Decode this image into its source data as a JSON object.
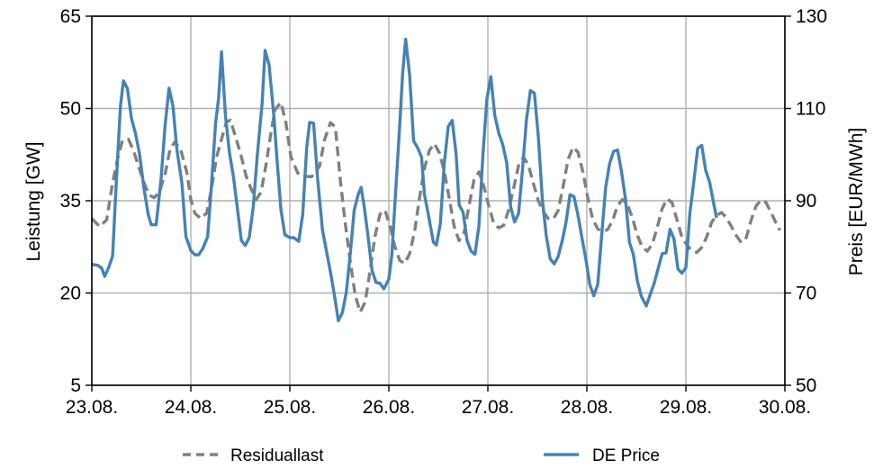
{
  "chart_data": {
    "type": "line",
    "title": "",
    "xlabel": "",
    "ylabel_left": "Leistung [GW]",
    "ylabel_right": "Preis [EUR/MWh]",
    "x_ticks": [
      "23.08.",
      "24.08.",
      "25.08.",
      "26.08.",
      "27.08.",
      "28.08.",
      "29.08.",
      "30.08."
    ],
    "xlim": [
      0,
      7
    ],
    "y_left_ticks": [
      "5",
      "20",
      "35",
      "50",
      "65"
    ],
    "y_left_lim": [
      5,
      65
    ],
    "y_right_ticks": [
      "50",
      "70",
      "90",
      "110",
      "130"
    ],
    "y_right_lim": [
      50,
      130
    ],
    "grid": true,
    "legend_position": "bottom",
    "series": [
      {
        "name": "Residuallast",
        "axis": "left",
        "style": "dashed",
        "color": "#808080",
        "points": [
          [
            0.0,
            32.1
          ],
          [
            0.08,
            30.8
          ],
          [
            0.15,
            31.9
          ],
          [
            0.21,
            37.9
          ],
          [
            0.26,
            41.8
          ],
          [
            0.31,
            44.8
          ],
          [
            0.37,
            45.0
          ],
          [
            0.42,
            43.2
          ],
          [
            0.48,
            40.2
          ],
          [
            0.53,
            37.8
          ],
          [
            0.58,
            35.9
          ],
          [
            0.63,
            35.5
          ],
          [
            0.68,
            36.3
          ],
          [
            0.74,
            39.3
          ],
          [
            0.79,
            43.4
          ],
          [
            0.84,
            44.6
          ],
          [
            0.9,
            43.2
          ],
          [
            0.96,
            39.6
          ],
          [
            1.0,
            35.2
          ],
          [
            1.04,
            33.0
          ],
          [
            1.1,
            32.1
          ],
          [
            1.16,
            33.0
          ],
          [
            1.21,
            37.1
          ],
          [
            1.26,
            42.1
          ],
          [
            1.31,
            45.0
          ],
          [
            1.36,
            47.8
          ],
          [
            1.4,
            48.1
          ],
          [
            1.45,
            45.5
          ],
          [
            1.51,
            42.2
          ],
          [
            1.56,
            38.9
          ],
          [
            1.61,
            36.9
          ],
          [
            1.66,
            35.2
          ],
          [
            1.71,
            36.4
          ],
          [
            1.76,
            40.9
          ],
          [
            1.81,
            46.1
          ],
          [
            1.85,
            49.8
          ],
          [
            1.91,
            51.0
          ],
          [
            1.96,
            47.7
          ],
          [
            2.01,
            42.2
          ],
          [
            2.08,
            39.5
          ],
          [
            2.15,
            39.0
          ],
          [
            2.22,
            38.9
          ],
          [
            2.3,
            40.6
          ],
          [
            2.35,
            44.9
          ],
          [
            2.41,
            47.7
          ],
          [
            2.46,
            47.0
          ],
          [
            2.51,
            38.3
          ],
          [
            2.56,
            31.3
          ],
          [
            2.61,
            25.2
          ],
          [
            2.66,
            19.7
          ],
          [
            2.71,
            16.9
          ],
          [
            2.76,
            18.5
          ],
          [
            2.81,
            23.5
          ],
          [
            2.86,
            29.2
          ],
          [
            2.91,
            32.8
          ],
          [
            2.96,
            33.5
          ],
          [
            3.01,
            31.0
          ],
          [
            3.06,
            27.6
          ],
          [
            3.11,
            25.3
          ],
          [
            3.16,
            24.8
          ],
          [
            3.21,
            26.4
          ],
          [
            3.26,
            30.0
          ],
          [
            3.31,
            35.5
          ],
          [
            3.36,
            40.3
          ],
          [
            3.41,
            43.2
          ],
          [
            3.46,
            44.3
          ],
          [
            3.51,
            42.8
          ],
          [
            3.56,
            39.8
          ],
          [
            3.61,
            35.4
          ],
          [
            3.66,
            30.8
          ],
          [
            3.71,
            28.5
          ],
          [
            3.76,
            29.8
          ],
          [
            3.81,
            34.2
          ],
          [
            3.86,
            38.4
          ],
          [
            3.91,
            39.7
          ],
          [
            3.96,
            37.3
          ],
          [
            4.01,
            34.1
          ],
          [
            4.06,
            31.3
          ],
          [
            4.11,
            30.6
          ],
          [
            4.16,
            31.0
          ],
          [
            4.21,
            33.5
          ],
          [
            4.26,
            37.0
          ],
          [
            4.31,
            40.7
          ],
          [
            4.36,
            42.1
          ],
          [
            4.41,
            40.8
          ],
          [
            4.46,
            37.8
          ],
          [
            4.51,
            35.0
          ],
          [
            4.56,
            33.2
          ],
          [
            4.61,
            32.1
          ],
          [
            4.66,
            32.0
          ],
          [
            4.71,
            33.4
          ],
          [
            4.76,
            37.3
          ],
          [
            4.81,
            41.7
          ],
          [
            4.86,
            43.7
          ],
          [
            4.91,
            42.9
          ],
          [
            4.96,
            39.7
          ],
          [
            5.01,
            35.4
          ],
          [
            5.06,
            32.0
          ],
          [
            5.11,
            30.4
          ],
          [
            5.16,
            30.0
          ],
          [
            5.21,
            30.3
          ],
          [
            5.26,
            31.8
          ],
          [
            5.31,
            34.2
          ],
          [
            5.36,
            35.2
          ],
          [
            5.41,
            34.4
          ],
          [
            5.46,
            32.2
          ],
          [
            5.51,
            29.4
          ],
          [
            5.56,
            27.4
          ],
          [
            5.61,
            26.8
          ],
          [
            5.66,
            27.9
          ],
          [
            5.71,
            30.6
          ],
          [
            5.76,
            33.7
          ],
          [
            5.81,
            35.3
          ],
          [
            5.86,
            34.7
          ],
          [
            5.91,
            31.9
          ],
          [
            5.96,
            29.1
          ],
          [
            6.01,
            27.8
          ],
          [
            6.06,
            26.9
          ],
          [
            6.11,
            26.6
          ],
          [
            6.16,
            27.4
          ],
          [
            6.21,
            29.1
          ],
          [
            6.26,
            31.5
          ],
          [
            6.31,
            32.6
          ],
          [
            6.36,
            33.1
          ],
          [
            6.41,
            32.2
          ],
          [
            6.46,
            30.8
          ],
          [
            6.51,
            29.3
          ],
          [
            6.56,
            28.2
          ],
          [
            6.61,
            29.0
          ],
          [
            6.66,
            31.9
          ],
          [
            6.71,
            34.2
          ],
          [
            6.76,
            35.1
          ],
          [
            6.81,
            34.7
          ],
          [
            6.86,
            33.1
          ],
          [
            6.91,
            31.4
          ],
          [
            6.95,
            30.2
          ]
        ]
      },
      {
        "name": "DE Price",
        "axis": "right",
        "style": "solid",
        "color": "#4682b4",
        "points": [
          [
            0.0,
            76.2
          ],
          [
            0.06,
            76.0
          ],
          [
            0.1,
            75.4
          ],
          [
            0.13,
            73.6
          ],
          [
            0.17,
            75.5
          ],
          [
            0.21,
            78.0
          ],
          [
            0.25,
            95.2
          ],
          [
            0.29,
            110.7
          ],
          [
            0.32,
            116.0
          ],
          [
            0.36,
            114.3
          ],
          [
            0.4,
            107.9
          ],
          [
            0.44,
            104.7
          ],
          [
            0.48,
            100.4
          ],
          [
            0.53,
            92.2
          ],
          [
            0.57,
            87.0
          ],
          [
            0.6,
            84.8
          ],
          [
            0.65,
            84.8
          ],
          [
            0.7,
            94.8
          ],
          [
            0.74,
            106.3
          ],
          [
            0.78,
            114.4
          ],
          [
            0.82,
            110.4
          ],
          [
            0.86,
            101.0
          ],
          [
            0.91,
            93.8
          ],
          [
            0.95,
            82.3
          ],
          [
            1.0,
            79.2
          ],
          [
            1.04,
            78.3
          ],
          [
            1.08,
            78.3
          ],
          [
            1.12,
            79.6
          ],
          [
            1.17,
            82.2
          ],
          [
            1.21,
            93.8
          ],
          [
            1.25,
            106.8
          ],
          [
            1.28,
            112.1
          ],
          [
            1.31,
            122.3
          ],
          [
            1.35,
            108.4
          ],
          [
            1.39,
            100.4
          ],
          [
            1.43,
            95.3
          ],
          [
            1.47,
            88.4
          ],
          [
            1.51,
            81.4
          ],
          [
            1.55,
            80.3
          ],
          [
            1.59,
            82.0
          ],
          [
            1.63,
            88.6
          ],
          [
            1.67,
            99.5
          ],
          [
            1.72,
            111.1
          ],
          [
            1.75,
            122.6
          ],
          [
            1.79,
            119.5
          ],
          [
            1.84,
            108.1
          ],
          [
            1.87,
            99.1
          ],
          [
            1.91,
            88.1
          ],
          [
            1.95,
            82.6
          ],
          [
            2.0,
            82.0
          ],
          [
            2.04,
            82.0
          ],
          [
            2.09,
            81.2
          ],
          [
            2.13,
            87.0
          ],
          [
            2.17,
            101.4
          ],
          [
            2.2,
            107.0
          ],
          [
            2.24,
            106.8
          ],
          [
            2.28,
            94.9
          ],
          [
            2.33,
            83.6
          ],
          [
            2.37,
            79.1
          ],
          [
            2.41,
            74.6
          ],
          [
            2.45,
            69.6
          ],
          [
            2.49,
            64.0
          ],
          [
            2.53,
            65.7
          ],
          [
            2.57,
            70.1
          ],
          [
            2.61,
            78.4
          ],
          [
            2.65,
            88.0
          ],
          [
            2.69,
            91.3
          ],
          [
            2.72,
            92.9
          ],
          [
            2.75,
            88.9
          ],
          [
            2.79,
            82.3
          ],
          [
            2.83,
            74.9
          ],
          [
            2.87,
            72.3
          ],
          [
            2.91,
            72.1
          ],
          [
            2.95,
            70.9
          ],
          [
            3.0,
            73.0
          ],
          [
            3.03,
            78.2
          ],
          [
            3.07,
            92.4
          ],
          [
            3.11,
            106.4
          ],
          [
            3.14,
            117.8
          ],
          [
            3.17,
            125.0
          ],
          [
            3.21,
            117.2
          ],
          [
            3.25,
            103.0
          ],
          [
            3.29,
            101.5
          ],
          [
            3.33,
            99.5
          ],
          [
            3.36,
            91.3
          ],
          [
            3.4,
            86.9
          ],
          [
            3.45,
            81.0
          ],
          [
            3.48,
            80.4
          ],
          [
            3.52,
            85.0
          ],
          [
            3.56,
            98.1
          ],
          [
            3.6,
            106.1
          ],
          [
            3.64,
            107.4
          ],
          [
            3.68,
            100.0
          ],
          [
            3.71,
            89.1
          ],
          [
            3.75,
            87.5
          ],
          [
            3.79,
            81.4
          ],
          [
            3.83,
            79.1
          ],
          [
            3.87,
            78.4
          ],
          [
            3.91,
            84.6
          ],
          [
            3.95,
            99.9
          ],
          [
            3.99,
            112.0
          ],
          [
            4.03,
            116.9
          ],
          [
            4.07,
            108.5
          ],
          [
            4.11,
            104.7
          ],
          [
            4.15,
            102.2
          ],
          [
            4.19,
            98.3
          ],
          [
            4.23,
            88.7
          ],
          [
            4.27,
            85.4
          ],
          [
            4.31,
            87.2
          ],
          [
            4.35,
            96.8
          ],
          [
            4.39,
            107.6
          ],
          [
            4.43,
            113.9
          ],
          [
            4.47,
            113.3
          ],
          [
            4.51,
            103.9
          ],
          [
            4.55,
            90.4
          ],
          [
            4.59,
            82.4
          ],
          [
            4.63,
            77.4
          ],
          [
            4.67,
            76.3
          ],
          [
            4.71,
            77.9
          ],
          [
            4.75,
            81.2
          ],
          [
            4.79,
            85.4
          ],
          [
            4.83,
            91.3
          ],
          [
            4.87,
            90.9
          ],
          [
            4.91,
            86.9
          ],
          [
            4.95,
            82.0
          ],
          [
            4.99,
            77.3
          ],
          [
            5.03,
            71.8
          ],
          [
            5.07,
            69.4
          ],
          [
            5.11,
            71.9
          ],
          [
            5.15,
            82.6
          ],
          [
            5.19,
            92.9
          ],
          [
            5.23,
            98.1
          ],
          [
            5.27,
            100.7
          ],
          [
            5.31,
            101.0
          ],
          [
            5.35,
            96.3
          ],
          [
            5.39,
            90.4
          ],
          [
            5.43,
            81.0
          ],
          [
            5.47,
            78.3
          ],
          [
            5.51,
            72.6
          ],
          [
            5.55,
            69.3
          ],
          [
            5.6,
            67.2
          ],
          [
            5.64,
            69.7
          ],
          [
            5.68,
            72.1
          ],
          [
            5.72,
            75.3
          ],
          [
            5.76,
            78.5
          ],
          [
            5.8,
            78.7
          ],
          [
            5.84,
            83.8
          ],
          [
            5.88,
            81.7
          ],
          [
            5.92,
            75.2
          ],
          [
            5.96,
            74.3
          ],
          [
            6.0,
            75.5
          ],
          [
            6.04,
            87.2
          ],
          [
            6.08,
            94.2
          ],
          [
            6.12,
            101.4
          ],
          [
            6.16,
            102.0
          ],
          [
            6.2,
            96.6
          ],
          [
            6.24,
            94.0
          ],
          [
            6.28,
            89.5
          ],
          [
            6.31,
            86.3
          ]
        ]
      }
    ]
  }
}
